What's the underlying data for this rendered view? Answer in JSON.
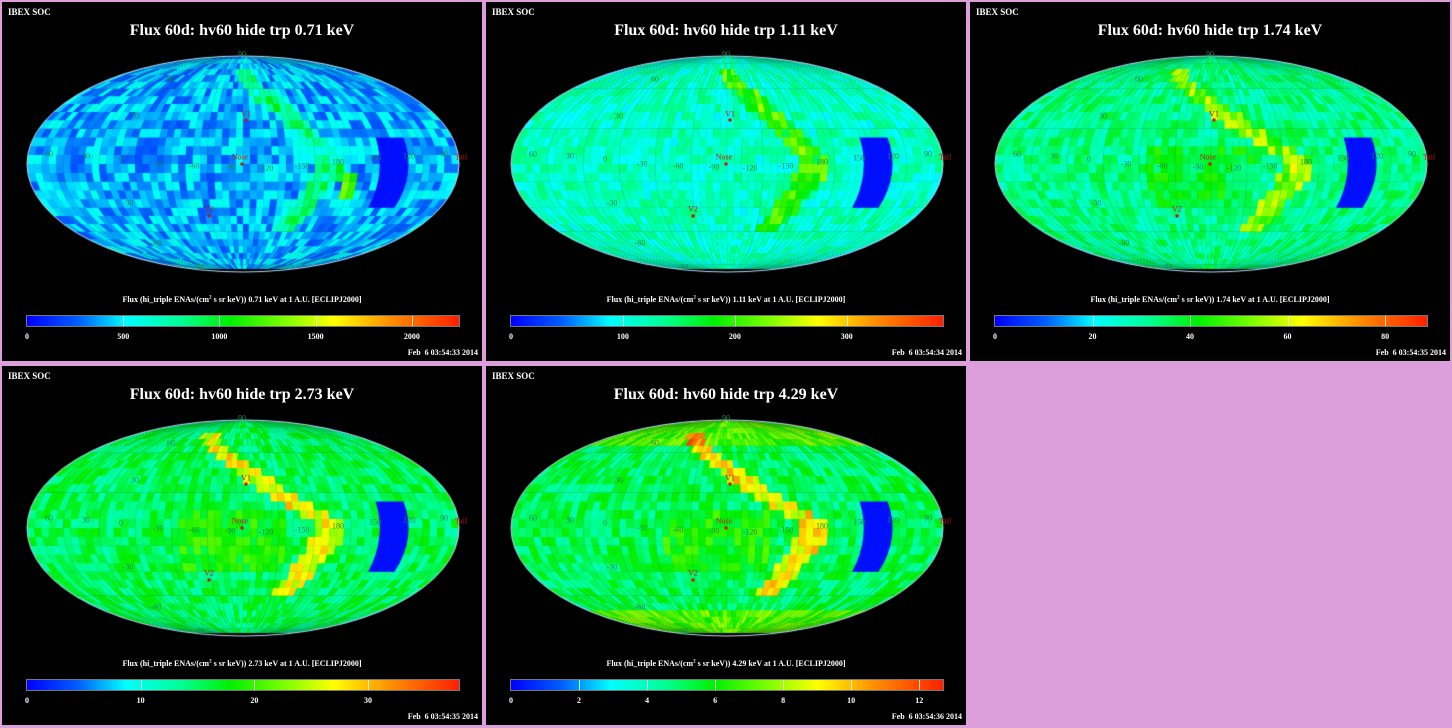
{
  "header_tag": "IBEX SOC",
  "panels": [
    {
      "title": "Flux 60d: hv60 hide trp 0.71 keV",
      "colorbar_label": "Flux (hi_triple ENAs/(cm",
      "colorbar_label_sup": "2",
      "colorbar_label_rest": " s sr keV)) 0.71 keV at 1 A.U. [ECLIPJ2000]",
      "ticks": [
        "0",
        "500",
        "1000",
        "1500",
        "2000"
      ],
      "tick_values": [
        0,
        500,
        1000,
        1500,
        2000
      ],
      "max": 2245,
      "date": "Feb  6 03:54:33 2014",
      "level": 0.18
    },
    {
      "title": "Flux 60d: hv60 hide trp 1.11 keV",
      "colorbar_label": "Flux (hi_triple ENAs/(cm",
      "colorbar_label_sup": "2",
      "colorbar_label_rest": " s sr keV)) 1.11 keV at 1 A.U. [ECLIPJ2000]",
      "ticks": [
        "0",
        "100",
        "200",
        "300"
      ],
      "tick_values": [
        0,
        100,
        200,
        300
      ],
      "max": 386,
      "date": "Feb  6 03:54:34 2014",
      "level": 0.3
    },
    {
      "title": "Flux 60d: hv60 hide trp 1.74 keV",
      "colorbar_label": "Flux (hi_triple ENAs/(cm",
      "colorbar_label_sup": "2",
      "colorbar_label_rest": " s sr keV)) 1.74 keV at 1 A.U. [ECLIPJ2000]",
      "ticks": [
        "0",
        "20",
        "40",
        "60",
        "80"
      ],
      "tick_values": [
        0,
        20,
        40,
        60,
        80
      ],
      "max": 88.6,
      "date": "Feb  6 03:54:35 2014",
      "level": 0.36
    },
    {
      "title": "Flux 60d: hv60 hide trp 2.73 keV",
      "colorbar_label": "Flux (hi_triple ENAs/(cm",
      "colorbar_label_sup": "2",
      "colorbar_label_rest": " s sr keV)) 2.73 keV at 1 A.U. [ECLIPJ2000]",
      "ticks": [
        "0",
        "10",
        "20",
        "30"
      ],
      "tick_values": [
        0,
        10,
        20,
        30
      ],
      "max": 38,
      "date": "Feb  6 03:54:35 2014",
      "level": 0.4
    },
    {
      "title": "Flux 60d: hv60 hide trp 4.29 keV",
      "colorbar_label": "Flux (hi_triple ENAs/(cm",
      "colorbar_label_sup": "2",
      "colorbar_label_rest": " s sr keV)) 4.29 keV at 1 A.U. [ECLIPJ2000]",
      "ticks": [
        "0",
        "2",
        "4",
        "6",
        "8",
        "10",
        "12"
      ],
      "tick_values": [
        0,
        2,
        4,
        6,
        8,
        10,
        12
      ],
      "max": 12.7,
      "date": "Feb  6 03:54:36 2014",
      "level": 0.4
    }
  ],
  "grid_labels": [
    "90",
    "60",
    "30",
    "60",
    "30",
    "0",
    "-30",
    "-60",
    "-90",
    "-120",
    "-150",
    "180",
    "150",
    "120",
    "90",
    "-30",
    "-60",
    "-90"
  ],
  "markers": [
    "V1",
    "Nose",
    "V2",
    "Tail"
  ],
  "chart_data": {
    "type": "heatmap",
    "projection": "Mollweide sky map, ecliptic J2000",
    "center_longitude": -90,
    "energies_keV": [
      0.71,
      1.11,
      1.74,
      2.73,
      4.29
    ],
    "colorbar_max": [
      2245,
      386,
      88.6,
      38,
      12.7
    ]
  }
}
